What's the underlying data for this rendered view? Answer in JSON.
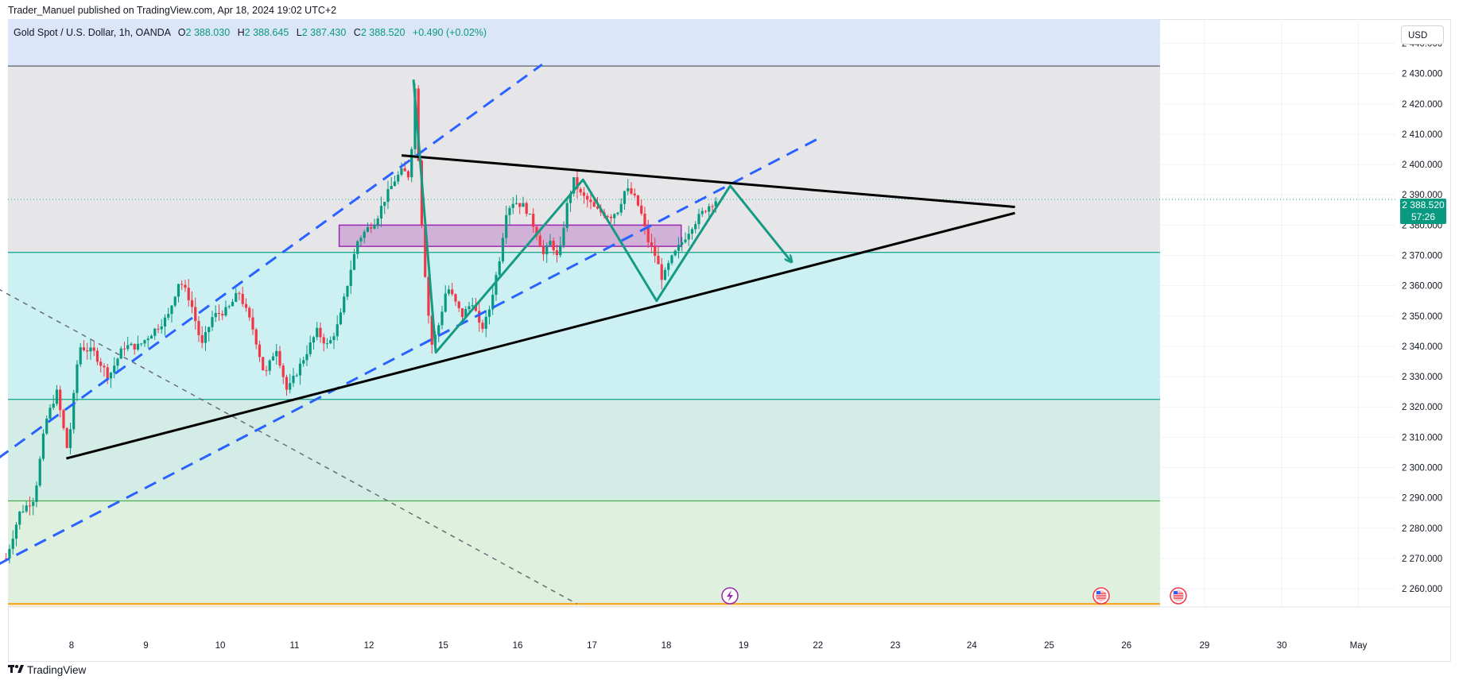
{
  "publish_line": "Trader_Manuel published on TradingView.com, Apr 18, 2024 19:02 UTC+2",
  "legend": {
    "symbol": "Gold Spot / U.S. Dollar, 1h, OANDA",
    "o_label": "O",
    "o": "2 388.030",
    "h_label": "H",
    "h": "2 388.645",
    "l_label": "L",
    "l": "2 387.430",
    "c_label": "C",
    "c": "2 388.520",
    "change": "+0.490 (+0.02%)"
  },
  "currency_button": "USD",
  "last_price": {
    "value": "2 388.520",
    "countdown": "57:26"
  },
  "brand": "TradingView",
  "icons": {
    "brand": "tradingview-logo-icon",
    "event_bolt": "lightning-icon",
    "event_flag": "us-flag-icon"
  },
  "colors": {
    "bull": "#089981",
    "bear": "#f23645",
    "trendline": "#000000",
    "channel": "#2962ff",
    "pattern": "#159b84",
    "zone": "#9c27b0"
  },
  "chart_data": {
    "type": "candlestick",
    "symbol": "XAUUSD",
    "timeframe": "1h",
    "ylim": [
      2254,
      2450
    ],
    "y_ticks": [
      "2 440.000",
      "2 430.000",
      "2 420.000",
      "2 410.000",
      "2 400.000",
      "2 390.000",
      "2 380.000",
      "2 370.000",
      "2 360.000",
      "2 350.000",
      "2 340.000",
      "2 330.000",
      "2 320.000",
      "2 310.000",
      "2 300.000",
      "2 290.000",
      "2 280.000",
      "2 270.000",
      "2 260.000"
    ],
    "x_ticks": [
      {
        "label": "8",
        "day": 1.0
      },
      {
        "label": "9",
        "day": 2.0
      },
      {
        "label": "10",
        "day": 3.0
      },
      {
        "label": "11",
        "day": 4.0
      },
      {
        "label": "12",
        "day": 5.0
      },
      {
        "label": "15",
        "day": 6.0
      },
      {
        "label": "16",
        "day": 7.0
      },
      {
        "label": "17",
        "day": 8.0
      },
      {
        "label": "18",
        "day": 9.0
      },
      {
        "label": "19",
        "day": 10.04
      },
      {
        "label": "22",
        "day": 11.04
      },
      {
        "label": "23",
        "day": 12.08
      },
      {
        "label": "24",
        "day": 13.11
      },
      {
        "label": "25",
        "day": 14.15
      },
      {
        "label": "26",
        "day": 15.19
      },
      {
        "label": "29",
        "day": 16.24
      },
      {
        "label": "30",
        "day": 17.28
      },
      {
        "label": "May",
        "day": 18.31
      }
    ],
    "price_path": [
      [
        0.12,
        2270
      ],
      [
        0.3,
        2285
      ],
      [
        0.5,
        2290
      ],
      [
        0.65,
        2315
      ],
      [
        0.8,
        2325
      ],
      [
        0.95,
        2305
      ],
      [
        1.1,
        2340
      ],
      [
        1.3,
        2338
      ],
      [
        1.5,
        2330
      ],
      [
        1.7,
        2340
      ],
      [
        1.9,
        2340
      ],
      [
        2.1,
        2345
      ],
      [
        2.3,
        2350
      ],
      [
        2.45,
        2362
      ],
      [
        2.6,
        2355
      ],
      [
        2.75,
        2340
      ],
      [
        2.9,
        2350
      ],
      [
        3.1,
        2352
      ],
      [
        3.25,
        2358
      ],
      [
        3.45,
        2345
      ],
      [
        3.6,
        2330
      ],
      [
        3.75,
        2340
      ],
      [
        3.9,
        2325
      ],
      [
        4.1,
        2335
      ],
      [
        4.3,
        2345
      ],
      [
        4.45,
        2340
      ],
      [
        4.6,
        2348
      ],
      [
        4.75,
        2365
      ],
      [
        4.85,
        2375
      ],
      [
        4.95,
        2378
      ],
      [
        5.1,
        2382
      ],
      [
        5.2,
        2388
      ],
      [
        5.35,
        2395
      ],
      [
        5.45,
        2398
      ],
      [
        5.55,
        2396
      ],
      [
        5.62,
        2425
      ],
      [
        5.7,
        2385
      ],
      [
        5.78,
        2355
      ],
      [
        5.85,
        2340
      ],
      [
        5.95,
        2348
      ],
      [
        6.05,
        2360
      ],
      [
        6.15,
        2355
      ],
      [
        6.25,
        2350
      ],
      [
        6.4,
        2355
      ],
      [
        6.5,
        2345
      ],
      [
        6.6,
        2350
      ],
      [
        6.75,
        2368
      ],
      [
        6.85,
        2385
      ],
      [
        6.95,
        2388
      ],
      [
        7.1,
        2386
      ],
      [
        7.25,
        2378
      ],
      [
        7.35,
        2370
      ],
      [
        7.45,
        2375
      ],
      [
        7.55,
        2368
      ],
      [
        7.65,
        2385
      ],
      [
        7.75,
        2395
      ],
      [
        7.85,
        2390
      ],
      [
        7.95,
        2388
      ],
      [
        8.05,
        2385
      ],
      [
        8.15,
        2384
      ],
      [
        8.25,
        2383
      ],
      [
        8.35,
        2385
      ],
      [
        8.45,
        2392
      ],
      [
        8.55,
        2390
      ],
      [
        8.65,
        2385
      ],
      [
        8.75,
        2375
      ],
      [
        8.85,
        2370
      ],
      [
        8.95,
        2362
      ],
      [
        9.05,
        2368
      ],
      [
        9.15,
        2372
      ],
      [
        9.25,
        2376
      ],
      [
        9.35,
        2380
      ],
      [
        9.45,
        2383
      ],
      [
        9.55,
        2386
      ],
      [
        9.65,
        2388
      ],
      [
        9.68,
        2388.5
      ]
    ],
    "levels": [
      {
        "price": 2432.5,
        "color": "#5d606b"
      },
      {
        "price": 2371,
        "color": "#22ab94"
      },
      {
        "price": 2322.5,
        "color": "#22ab94"
      },
      {
        "price": 2289,
        "color": "#4caf50"
      },
      {
        "price": 2255,
        "color": "#f7a21b"
      },
      {
        "price": 2388.5,
        "color": "#22ab94",
        "dotted": true
      }
    ],
    "bands": [
      {
        "from": 2432.5,
        "to": 2450,
        "color": "#dce6fb"
      },
      {
        "from": 2371,
        "to": 2432.5,
        "color": "#e6e6e8"
      },
      {
        "from": 2322.5,
        "to": 2371,
        "color": "#cdf1f3"
      },
      {
        "from": 2289,
        "to": 2322.5,
        "color": "#d3ece6"
      },
      {
        "from": 2255,
        "to": 2289,
        "color": "#dff0de"
      },
      {
        "from": 2250,
        "to": 2255,
        "color": "#fdecd0"
      }
    ],
    "drawings": {
      "triangle_upper": [
        [
          5.44,
          2403
        ],
        [
          13.69,
          2386
        ]
      ],
      "triangle_lower": [
        [
          0.93,
          2303
        ],
        [
          13.69,
          2384
        ]
      ],
      "channel_upper": [
        [
          0.01,
          2303
        ],
        [
          7.33,
          2433
        ]
      ],
      "channel_lower": [
        [
          0.01,
          2268
        ],
        [
          11.08,
          2409
        ]
      ],
      "diagonal_dash": [
        [
          0.01,
          2359
        ],
        [
          7.8,
          2255
        ]
      ],
      "resistance_zone": {
        "x": [
          4.6,
          9.2
        ],
        "y": [
          2373,
          2380
        ]
      },
      "pattern_path": [
        [
          5.6,
          2428
        ],
        [
          5.9,
          2338
        ],
        [
          7.88,
          2395
        ],
        [
          8.87,
          2355
        ],
        [
          9.86,
          2393
        ],
        [
          10.68,
          2368
        ]
      ]
    }
  }
}
